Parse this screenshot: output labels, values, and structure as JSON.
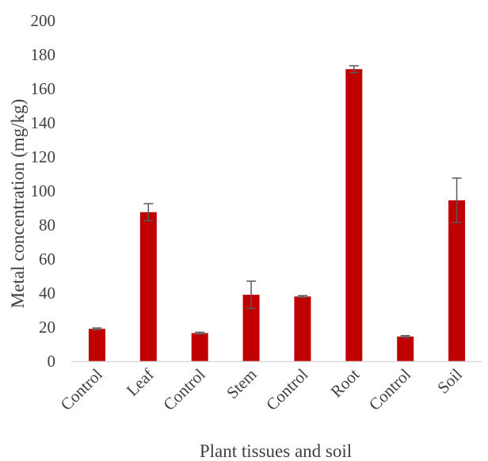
{
  "chart_data": {
    "type": "bar",
    "title": "",
    "xlabel": "Plant tissues and soil",
    "ylabel": "Metal concentration (mg/kg)",
    "ylim": [
      0,
      200
    ],
    "yticks": [
      0,
      20,
      40,
      60,
      80,
      100,
      120,
      140,
      160,
      180,
      200
    ],
    "grid": false,
    "legend": "none",
    "categories": [
      "Control",
      "Leaf",
      "Control",
      "Stem",
      "Control",
      "Root",
      "Control",
      "Soil"
    ],
    "values": [
      19,
      87.5,
      16.5,
      39,
      38,
      171.5,
      14.5,
      94.5
    ],
    "errors": [
      0.5,
      5,
      0.5,
      8,
      0.5,
      2,
      0.5,
      13
    ],
    "bar_color": "#c00000",
    "error_bar_color": "#595959",
    "axis_color": "#d9d9d9"
  }
}
